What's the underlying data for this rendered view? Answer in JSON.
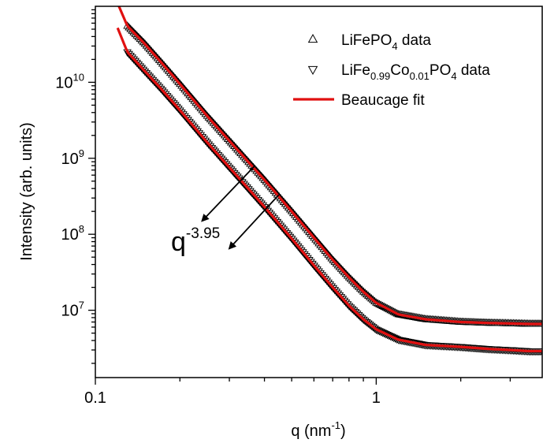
{
  "chart_data": {
    "type": "scatter",
    "title": "",
    "xlabel": {
      "base": "q (nm",
      "sup": "-1",
      "tail": ")"
    },
    "ylabel": "Intensity (arb. units)",
    "x_scale": "log",
    "y_scale": "log",
    "xlim": [
      0.1,
      3.9
    ],
    "ylim": [
      1300000.0,
      100000000000.0
    ],
    "x_ticks": [
      {
        "value": 0.1,
        "label": "0.1"
      },
      {
        "value": 1,
        "label": "1"
      }
    ],
    "y_ticks": [
      {
        "value": 10000000.0,
        "base": "10",
        "exp": "7"
      },
      {
        "value": 100000000.0,
        "base": "10",
        "exp": "8"
      },
      {
        "value": 1000000000.0,
        "base": "10",
        "exp": "9"
      },
      {
        "value": 10000000000.0,
        "base": "10",
        "exp": "10"
      }
    ],
    "grid": false,
    "legend_position": "top-right",
    "legend": [
      {
        "kind": "marker-up",
        "parts": [
          [
            "LiFePO",
            ""
          ],
          [
            "4",
            "sub"
          ],
          [
            " data",
            ""
          ]
        ]
      },
      {
        "kind": "marker-down",
        "parts": [
          [
            "LiFe",
            ""
          ],
          [
            "0.99",
            "sub"
          ],
          [
            "Co",
            ""
          ],
          [
            "0.01",
            "sub"
          ],
          [
            "PO",
            ""
          ],
          [
            "4",
            "sub"
          ],
          [
            " data",
            ""
          ]
        ]
      },
      {
        "kind": "line",
        "parts": [
          [
            "Beaucage fit",
            ""
          ]
        ]
      }
    ],
    "series": [
      {
        "marker": "triangle-up",
        "color": "#000000",
        "x": [
          0.13,
          0.15,
          0.17,
          0.2,
          0.25,
          0.3,
          0.4,
          0.5,
          0.6,
          0.7,
          0.8,
          0.9,
          1.0,
          1.2,
          1.5,
          2.0,
          2.5,
          3.0,
          3.5,
          3.9
        ],
        "y": [
          55000000000.0,
          32000000000.0,
          19000000000.0,
          9500000000.0,
          3600000000.0,
          1700000000.0,
          520000000.0,
          200000000.0,
          90000000.0,
          46000000.0,
          27000000.0,
          17500000.0,
          12500000.0,
          8800000.0,
          7600000.0,
          7000000.0,
          6800000.0,
          6700000.0,
          6600000.0,
          6600000.0
        ]
      },
      {
        "marker": "triangle-down",
        "color": "#000000",
        "x": [
          0.13,
          0.15,
          0.17,
          0.2,
          0.25,
          0.3,
          0.4,
          0.5,
          0.6,
          0.7,
          0.8,
          0.9,
          1.0,
          1.2,
          1.5,
          2.0,
          2.5,
          3.0,
          3.5,
          3.9
        ],
        "y": [
          25000000000.0,
          14000000000.0,
          8500000000.0,
          4300000000.0,
          1620000000.0,
          760000000.0,
          230000000.0,
          88000000.0,
          39000000.0,
          20000000.0,
          11500000.0,
          7600000.0,
          5600000.0,
          4100000.0,
          3500000.0,
          3300000.0,
          3100000.0,
          3000000.0,
          2900000.0,
          2900000.0
        ]
      }
    ],
    "fits": [
      {
        "name": "Beaucage fit",
        "color": "#e01010",
        "x": [
          0.12,
          0.13,
          0.15,
          0.17,
          0.2,
          0.25,
          0.3,
          0.4,
          0.5,
          0.6,
          0.7,
          0.8,
          0.9,
          1.0,
          1.2,
          1.5,
          2.0,
          2.5,
          3.0,
          3.5,
          3.9
        ],
        "y": [
          110000000000.0,
          55000000000.0,
          32000000000.0,
          19000000000.0,
          9500000000.0,
          3600000000.0,
          1700000000.0,
          520000000.0,
          200000000.0,
          90000000.0,
          46000000.0,
          27000000.0,
          17500000.0,
          12500000.0,
          8800000.0,
          7600000.0,
          7000000.0,
          6800000.0,
          6700000.0,
          6600000.0,
          6600000.0
        ]
      },
      {
        "name": "Beaucage fit",
        "color": "#e01010",
        "x": [
          0.12,
          0.13,
          0.15,
          0.17,
          0.2,
          0.25,
          0.3,
          0.4,
          0.5,
          0.6,
          0.7,
          0.8,
          0.9,
          1.0,
          1.2,
          1.5,
          2.0,
          2.5,
          3.0,
          3.5,
          3.9
        ],
        "y": [
          52000000000.0,
          25000000000.0,
          14000000000.0,
          8500000000.0,
          4300000000.0,
          1620000000.0,
          760000000.0,
          230000000.0,
          88000000.0,
          39000000.0,
          20000000.0,
          11500000.0,
          7600000.0,
          5600000.0,
          4100000.0,
          3500000.0,
          3300000.0,
          3100000.0,
          3000000.0,
          2900000.0,
          2900000.0
        ]
      }
    ],
    "annotation": {
      "base": "q",
      "sup": "-3.95"
    },
    "arrows": [
      {
        "from": [
          0.37,
          800000000.0
        ],
        "to": [
          0.24,
          150000000.0
        ]
      },
      {
        "from": [
          0.45,
          330000000.0
        ],
        "to": [
          0.3,
          65000000.0
        ]
      }
    ]
  }
}
